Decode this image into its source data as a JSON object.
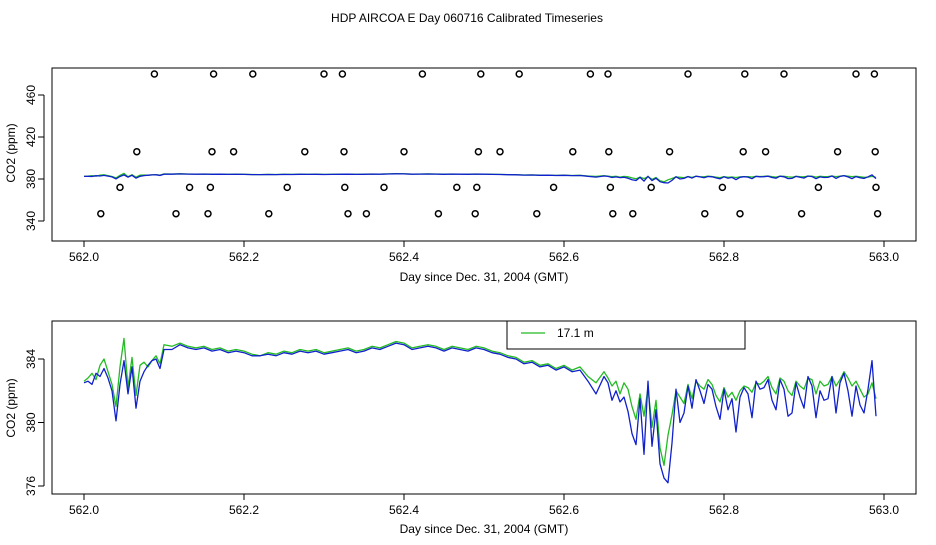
{
  "title": "HDP AIRCOA E  Day 060716  Calibrated Timeseries",
  "colors": {
    "green": "#22bb22",
    "blue": "#1020cc",
    "axis": "#000000"
  },
  "chart_data": [
    {
      "type": "scatter",
      "xlabel": "Day since Dec. 31, 2004 (GMT)",
      "ylabel": "CO2 (ppm)",
      "xlim": [
        562.0,
        563.0
      ],
      "ylim": [
        340,
        480
      ],
      "xticks": [
        "562.0",
        "562.2",
        "562.4",
        "562.6",
        "562.8",
        "563.0"
      ],
      "yticks": [
        "340",
        "380",
        "420",
        "460"
      ],
      "grid": false,
      "series": [
        {
          "role": "calibration points",
          "color": "#000000",
          "points": [
            [
              562.021,
              347
            ],
            [
              562.045,
              372
            ],
            [
              562.066,
              406
            ],
            [
              562.088,
              480
            ],
            [
              562.115,
              347
            ],
            [
              562.132,
              372
            ],
            [
              562.155,
              347
            ],
            [
              562.158,
              372
            ],
            [
              562.16,
              406
            ],
            [
              562.162,
              480
            ],
            [
              562.187,
              406
            ],
            [
              562.211,
              480
            ],
            [
              562.231,
              347
            ],
            [
              562.254,
              372
            ],
            [
              562.276,
              406
            ],
            [
              562.3,
              480
            ],
            [
              562.323,
              480
            ],
            [
              562.325,
              406
            ],
            [
              562.326,
              372
            ],
            [
              562.33,
              347
            ],
            [
              562.353,
              347
            ],
            [
              562.375,
              372
            ],
            [
              562.4,
              406
            ],
            [
              562.423,
              480
            ],
            [
              562.443,
              347
            ],
            [
              562.466,
              372
            ],
            [
              562.489,
              347
            ],
            [
              562.491,
              372
            ],
            [
              562.493,
              406
            ],
            [
              562.496,
              480
            ],
            [
              562.52,
              406
            ],
            [
              562.544,
              480
            ],
            [
              562.566,
              347
            ],
            [
              562.587,
              372
            ],
            [
              562.611,
              406
            ],
            [
              562.633,
              480
            ],
            [
              562.655,
              480
            ],
            [
              562.656,
              406
            ],
            [
              562.658,
              372
            ],
            [
              562.661,
              347
            ],
            [
              562.686,
              347
            ],
            [
              562.709,
              372
            ],
            [
              562.732,
              406
            ],
            [
              562.755,
              480
            ],
            [
              562.776,
              347
            ],
            [
              562.798,
              372
            ],
            [
              562.82,
              347
            ],
            [
              562.824,
              406
            ],
            [
              562.826,
              480
            ],
            [
              562.852,
              406
            ],
            [
              562.875,
              480
            ],
            [
              562.897,
              347
            ],
            [
              562.918,
              372
            ],
            [
              562.942,
              406
            ],
            [
              562.965,
              480
            ],
            [
              562.988,
              480
            ],
            [
              562.989,
              406
            ],
            [
              562.99,
              372
            ],
            [
              562.992,
              347
            ]
          ]
        },
        {
          "role": "co2 line green",
          "color": "#22bb22"
        },
        {
          "role": "co2 line blue",
          "color": "#1020cc"
        }
      ]
    },
    {
      "type": "line",
      "xlabel": "Day since Dec. 31, 2004 (GMT)",
      "ylabel": "CO2 (ppm)",
      "xlim": [
        562.0,
        563.0
      ],
      "ylim": [
        375.9,
        385.9
      ],
      "xticks": [
        "562.0",
        "562.2",
        "562.4",
        "562.6",
        "562.8",
        "563.0"
      ],
      "yticks": [
        "376",
        "380",
        "384"
      ],
      "legend": {
        "position": "top-right",
        "entries": [
          {
            "label": "17.1 m",
            "color": "#22bb22"
          }
        ]
      },
      "x": [
        562.0,
        562.005,
        562.01,
        562.015,
        562.02,
        562.025,
        562.03,
        562.035,
        562.04,
        562.045,
        562.05,
        562.055,
        562.06,
        562.065,
        562.07,
        562.075,
        562.08,
        562.085,
        562.09,
        562.095,
        562.1,
        562.11,
        562.12,
        562.13,
        562.14,
        562.15,
        562.16,
        562.17,
        562.18,
        562.19,
        562.2,
        562.21,
        562.22,
        562.23,
        562.24,
        562.25,
        562.26,
        562.27,
        562.28,
        562.29,
        562.3,
        562.31,
        562.32,
        562.33,
        562.34,
        562.35,
        562.36,
        562.37,
        562.38,
        562.39,
        562.4,
        562.41,
        562.42,
        562.43,
        562.44,
        562.45,
        562.46,
        562.47,
        562.48,
        562.49,
        562.5,
        562.51,
        562.52,
        562.53,
        562.54,
        562.55,
        562.56,
        562.57,
        562.58,
        562.59,
        562.6,
        562.61,
        562.62,
        562.63,
        562.64,
        562.65,
        562.655,
        562.66,
        562.665,
        562.67,
        562.675,
        562.68,
        562.685,
        562.69,
        562.695,
        562.7,
        562.705,
        562.71,
        562.715,
        562.72,
        562.725,
        562.73,
        562.735,
        562.74,
        562.745,
        562.75,
        562.755,
        562.76,
        562.765,
        562.77,
        562.775,
        562.78,
        562.785,
        562.79,
        562.795,
        562.8,
        562.805,
        562.81,
        562.815,
        562.82,
        562.825,
        562.83,
        562.835,
        562.84,
        562.845,
        562.85,
        562.855,
        562.86,
        562.865,
        562.87,
        562.875,
        562.88,
        562.885,
        562.89,
        562.895,
        562.9,
        562.905,
        562.91,
        562.915,
        562.92,
        562.925,
        562.93,
        562.935,
        562.94,
        562.945,
        562.95,
        562.955,
        562.96,
        562.965,
        562.97,
        562.975,
        562.98,
        562.985,
        562.99
      ],
      "series": [
        {
          "name": "17.1 m",
          "color": "#22bb22",
          "values": [
            382.6,
            382.8,
            383.1,
            382.7,
            383.6,
            384.0,
            383.2,
            382.4,
            381.0,
            383.5,
            385.3,
            382.2,
            384.1,
            381.7,
            383.6,
            383.8,
            383.5,
            383.9,
            384.2,
            383.7,
            384.9,
            384.8,
            385.0,
            384.8,
            384.7,
            384.8,
            384.6,
            384.7,
            384.5,
            384.6,
            384.5,
            384.3,
            384.2,
            384.4,
            384.3,
            384.5,
            384.4,
            384.6,
            384.5,
            384.6,
            384.4,
            384.5,
            384.6,
            384.7,
            384.5,
            384.6,
            384.8,
            384.7,
            384.9,
            385.1,
            385.0,
            384.7,
            384.8,
            384.9,
            384.8,
            384.6,
            384.8,
            384.7,
            384.6,
            384.8,
            384.7,
            384.5,
            384.4,
            384.2,
            384.1,
            383.8,
            383.9,
            383.6,
            383.7,
            383.4,
            383.6,
            383.3,
            383.5,
            382.9,
            382.5,
            383.2,
            382.8,
            382.3,
            382.6,
            381.8,
            382.5,
            382.1,
            381.0,
            380.2,
            381.8,
            380.4,
            382.2,
            379.7,
            381.4,
            378.4,
            377.3,
            379.2,
            380.5,
            382.0,
            381.6,
            381.2,
            382.4,
            381.5,
            382.6,
            382.3,
            382.1,
            382.7,
            382.4,
            381.7,
            381.3,
            382.2,
            381.6,
            381.9,
            381.4,
            382.0,
            382.3,
            382.2,
            381.9,
            382.5,
            382.4,
            382.6,
            382.9,
            382.2,
            381.8,
            382.8,
            382.6,
            382.0,
            381.7,
            382.6,
            382.3,
            382.1,
            382.8,
            382.7,
            381.8,
            382.6,
            382.3,
            382.4,
            382.9,
            382.3,
            382.7,
            383.2,
            382.8,
            382.3,
            382.6,
            382.1,
            381.6,
            381.8,
            382.5,
            381.5
          ]
        },
        {
          "color": "#1020cc",
          "values": [
            382.5,
            382.6,
            382.4,
            383.1,
            382.9,
            383.4,
            382.8,
            382.0,
            380.1,
            382.4,
            383.9,
            381.8,
            383.5,
            380.9,
            382.6,
            383.2,
            383.6,
            383.9,
            384.0,
            383.4,
            384.6,
            384.6,
            384.9,
            384.7,
            384.6,
            384.7,
            384.5,
            384.6,
            384.4,
            384.5,
            384.4,
            384.2,
            384.2,
            384.3,
            384.2,
            384.4,
            384.3,
            384.5,
            384.4,
            384.5,
            384.3,
            384.4,
            384.5,
            384.6,
            384.4,
            384.5,
            384.7,
            384.6,
            384.8,
            385.0,
            384.9,
            384.6,
            384.7,
            384.8,
            384.7,
            384.5,
            384.7,
            384.6,
            384.5,
            384.7,
            384.6,
            384.4,
            384.3,
            384.1,
            384.0,
            383.7,
            383.8,
            383.5,
            383.6,
            383.3,
            383.5,
            383.2,
            383.3,
            382.6,
            381.8,
            382.9,
            382.5,
            381.4,
            382.0,
            381.3,
            381.6,
            380.7,
            379.3,
            378.6,
            381.5,
            378.0,
            382.6,
            378.5,
            380.8,
            377.4,
            376.5,
            376.2,
            378.7,
            382.1,
            380.0,
            380.6,
            382.3,
            380.9,
            382.7,
            382.0,
            381.2,
            382.4,
            382.1,
            381.0,
            380.2,
            382.1,
            380.8,
            381.5,
            379.4,
            381.6,
            382.2,
            381.8,
            380.3,
            382.6,
            382.1,
            382.2,
            382.7,
            381.4,
            380.8,
            382.7,
            382.1,
            380.4,
            380.6,
            382.5,
            381.6,
            380.9,
            382.9,
            382.3,
            380.3,
            382.0,
            381.4,
            381.5,
            382.9,
            380.6,
            382.5,
            383.1,
            382.0,
            380.4,
            382.3,
            381.1,
            380.6,
            382.1,
            383.9,
            380.4
          ]
        }
      ]
    }
  ]
}
